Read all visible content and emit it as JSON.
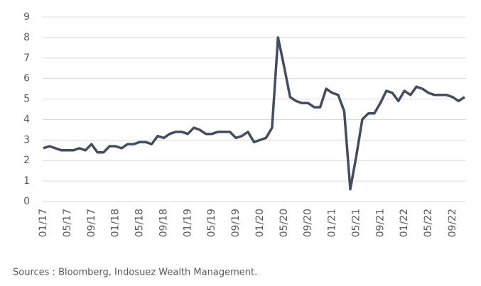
{
  "chart_data": {
    "type": "line",
    "categories": [
      "01/17",
      null,
      null,
      null,
      "05/17",
      null,
      null,
      null,
      "09/17",
      null,
      null,
      null,
      "01/18",
      null,
      null,
      null,
      "05/18",
      null,
      null,
      null,
      "09/18",
      null,
      null,
      null,
      "01/19",
      null,
      null,
      null,
      "05/19",
      null,
      null,
      null,
      "09/19",
      null,
      null,
      null,
      "01/20",
      null,
      null,
      null,
      "05/20",
      null,
      null,
      null,
      "09/20",
      null,
      null,
      null,
      "01/21",
      null,
      null,
      null,
      "05/21",
      null,
      null,
      null,
      "09/21",
      null,
      null,
      null,
      "01/22",
      null,
      null,
      null,
      "05/22",
      null,
      null,
      null,
      "09/22",
      null,
      null
    ],
    "series": [
      {
        "color": "#434d5e",
        "values": [
          2.6,
          2.7,
          2.6,
          2.5,
          2.5,
          2.5,
          2.6,
          2.5,
          2.8,
          2.4,
          2.4,
          2.7,
          2.7,
          2.6,
          2.8,
          2.8,
          2.9,
          2.9,
          2.8,
          3.2,
          3.1,
          3.3,
          3.4,
          3.4,
          3.3,
          3.6,
          3.5,
          3.3,
          3.3,
          3.4,
          3.4,
          3.4,
          3.1,
          3.2,
          3.4,
          2.9,
          3.0,
          3.1,
          3.6,
          8.0,
          6.6,
          5.1,
          4.9,
          4.8,
          4.8,
          4.6,
          4.6,
          5.5,
          5.3,
          5.2,
          4.4,
          0.6,
          2.2,
          4.0,
          4.3,
          4.3,
          4.8,
          5.4,
          5.3,
          4.9,
          5.4,
          5.2,
          5.6,
          5.5,
          5.3,
          5.2,
          5.2,
          5.2,
          5.1,
          4.9,
          5.1
        ]
      }
    ],
    "ylim": [
      0,
      9
    ],
    "yticks": [
      0,
      1,
      2,
      3,
      4,
      5,
      6,
      7,
      8,
      9
    ],
    "grid": true,
    "source": "Sources :  Bloomberg, Indosuez Wealth Management."
  }
}
